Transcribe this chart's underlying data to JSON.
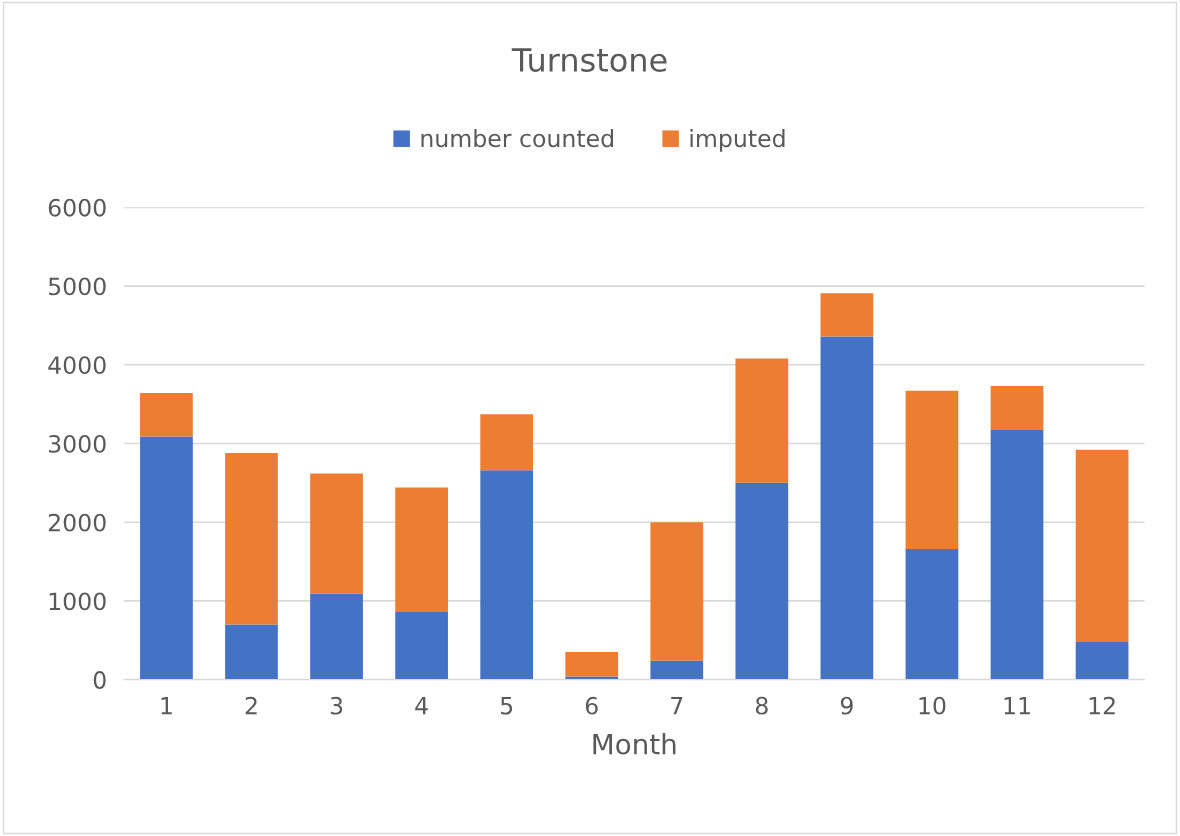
{
  "chart_data": {
    "type": "bar",
    "title": "Turnstone",
    "xlabel": "Month",
    "categories": [
      "1",
      "2",
      "3",
      "4",
      "5",
      "6",
      "7",
      "8",
      "9",
      "10",
      "11",
      "12"
    ],
    "stacked": true,
    "series": [
      {
        "name": "number counted",
        "color": "#4472c4",
        "values": [
          3090,
          700,
          1090,
          860,
          2660,
          40,
          240,
          2500,
          4360,
          1660,
          3170,
          480
        ]
      },
      {
        "name": "imputed",
        "color": "#ed7d31",
        "values": [
          550,
          2180,
          1530,
          1580,
          710,
          310,
          1760,
          1580,
          550,
          2010,
          560,
          2440
        ]
      }
    ],
    "ylim": [
      0,
      6000
    ],
    "yticks": [
      0,
      1000,
      2000,
      3000,
      4000,
      5000,
      6000
    ],
    "grid": "y",
    "legend": "top"
  }
}
